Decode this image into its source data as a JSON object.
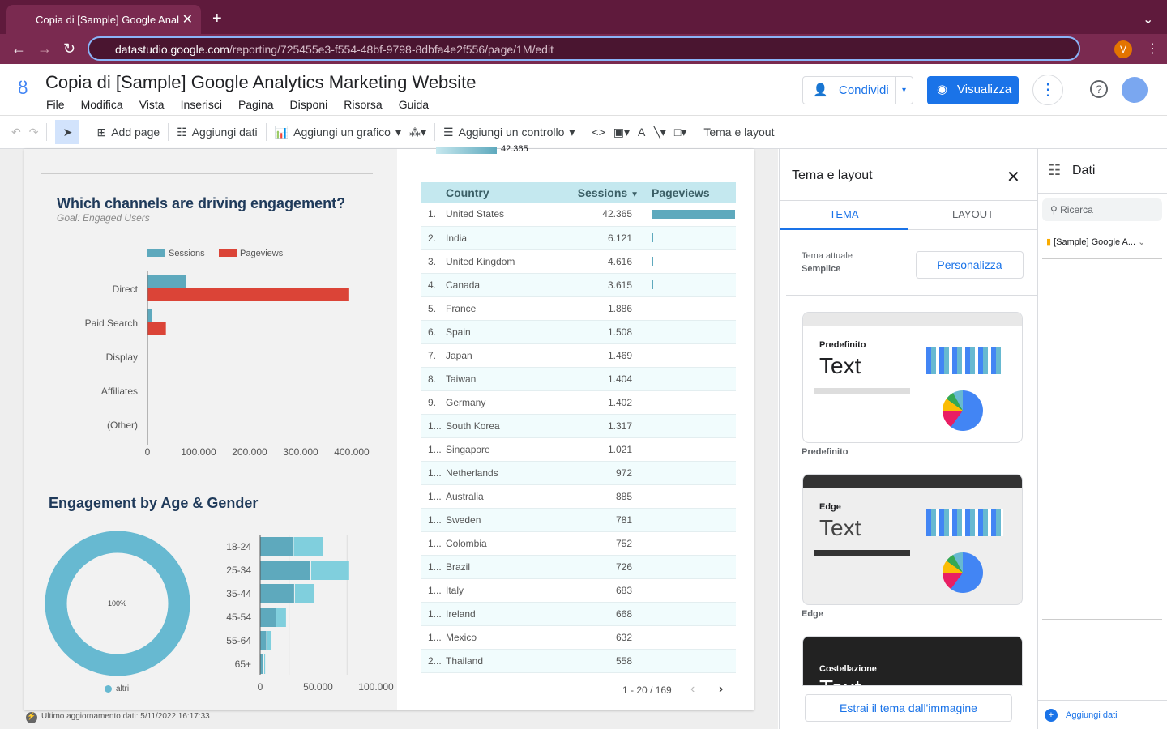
{
  "browser": {
    "tab_title": "Copia di [Sample] Google Anal",
    "url_host": "datastudio.google.com",
    "url_path": "/reporting/725455e3-f554-48bf-9798-8dbfa4e2f556/page/1M/edit",
    "profile_initial": "V"
  },
  "app": {
    "title": "Copia di [Sample] Google Analytics Marketing Website",
    "menu": [
      "File",
      "Modifica",
      "Vista",
      "Inserisci",
      "Pagina",
      "Disponi",
      "Risorsa",
      "Guida"
    ],
    "share_label": "Condividi",
    "view_label": "Visualizza"
  },
  "toolbar": {
    "add_page": "Add page",
    "add_data": "Aggiungi dati",
    "add_chart": "Aggiungi un grafico",
    "add_control": "Aggiungi un controllo",
    "theme_layout": "Tema e layout"
  },
  "report": {
    "top_value": "42.365",
    "channels": {
      "title": "Which channels are driving engagement?",
      "subtitle": "Goal: Engaged Users"
    },
    "age_gender": {
      "title": "Engagement by Age & Gender",
      "donut_label": "100%",
      "donut_legend": "altri"
    },
    "table": {
      "headers": [
        "Country",
        "Sessions",
        "Pageviews"
      ],
      "rows": [
        [
          "1.",
          "United States",
          "42.365"
        ],
        [
          "2.",
          "India",
          "6.121"
        ],
        [
          "3.",
          "United Kingdom",
          "4.616"
        ],
        [
          "4.",
          "Canada",
          "3.615"
        ],
        [
          "5.",
          "France",
          "1.886"
        ],
        [
          "6.",
          "Spain",
          "1.508"
        ],
        [
          "7.",
          "Japan",
          "1.469"
        ],
        [
          "8.",
          "Taiwan",
          "1.404"
        ],
        [
          "9.",
          "Germany",
          "1.402"
        ],
        [
          "1...",
          "South Korea",
          "1.317"
        ],
        [
          "1...",
          "Singapore",
          "1.021"
        ],
        [
          "1...",
          "Netherlands",
          "972"
        ],
        [
          "1...",
          "Australia",
          "885"
        ],
        [
          "1...",
          "Sweden",
          "781"
        ],
        [
          "1...",
          "Colombia",
          "752"
        ],
        [
          "1...",
          "Brazil",
          "726"
        ],
        [
          "1...",
          "Italy",
          "683"
        ],
        [
          "1...",
          "Ireland",
          "668"
        ],
        [
          "1...",
          "Mexico",
          "632"
        ],
        [
          "2...",
          "Thailand",
          "558"
        ]
      ],
      "pageview_fraction": [
        1,
        0.02,
        0.02,
        0.02,
        0.003,
        0.003,
        0.003,
        0.01,
        0.003,
        0.003,
        0.003,
        0.003,
        0.003,
        0.003,
        0.003,
        0.003,
        0.003,
        0.003,
        0.003,
        0.003
      ],
      "pager": "1 - 20 / 169"
    },
    "footer": "Ultimo aggiornamento dati: 5/11/2022 16:17:33"
  },
  "chart_data": [
    {
      "type": "bar",
      "orientation": "horizontal",
      "categories": [
        "Direct",
        "Paid Search",
        "Display",
        "Affiliates",
        "(Other)"
      ],
      "series": [
        {
          "name": "Sessions",
          "values": [
            75000,
            8000,
            0,
            0,
            0
          ],
          "color": "#5ea9bd"
        },
        {
          "name": "Pageviews",
          "values": [
            395000,
            36000,
            0,
            0,
            0
          ],
          "color": "#db4437"
        }
      ],
      "xlim": [
        0,
        400000
      ],
      "xticks": [
        "0",
        "100.000",
        "200.000",
        "300.000",
        "400.000"
      ],
      "legend": "top"
    },
    {
      "type": "bar",
      "orientation": "horizontal",
      "stacked": true,
      "categories": [
        "18-24",
        "25-34",
        "35-44",
        "45-54",
        "55-64",
        "65+"
      ],
      "series": [
        {
          "values": [
            29000,
            44000,
            30000,
            14000,
            6000,
            3500
          ],
          "color": "#5ea9bd"
        },
        {
          "values": [
            26000,
            33500,
            17500,
            9000,
            4500,
            1500
          ],
          "color": "#80cfdd"
        }
      ],
      "xlim": [
        0,
        100000
      ],
      "xticks": [
        "0",
        "50.000",
        "100.000"
      ]
    },
    {
      "type": "pie",
      "categories": [
        "altri"
      ],
      "values": [
        100
      ],
      "color": "#67b9d1"
    }
  ],
  "theme_panel": {
    "title": "Tema e layout",
    "tabs": [
      "TEMA",
      "LAYOUT"
    ],
    "current_label": "Tema attuale",
    "current_value": "Semplice",
    "customize": "Personalizza",
    "themes": [
      {
        "name": "Predefinito",
        "sample": "Text"
      },
      {
        "name": "Edge",
        "sample": "Text"
      },
      {
        "name": "Costellazione",
        "sample": "Text"
      }
    ],
    "extract": "Estrai il tema dall'immagine"
  },
  "data_panel": {
    "title": "Dati",
    "search_placeholder": "Ricerca",
    "source": "[Sample] Google A...",
    "add_data": "Aggiungi dati"
  }
}
